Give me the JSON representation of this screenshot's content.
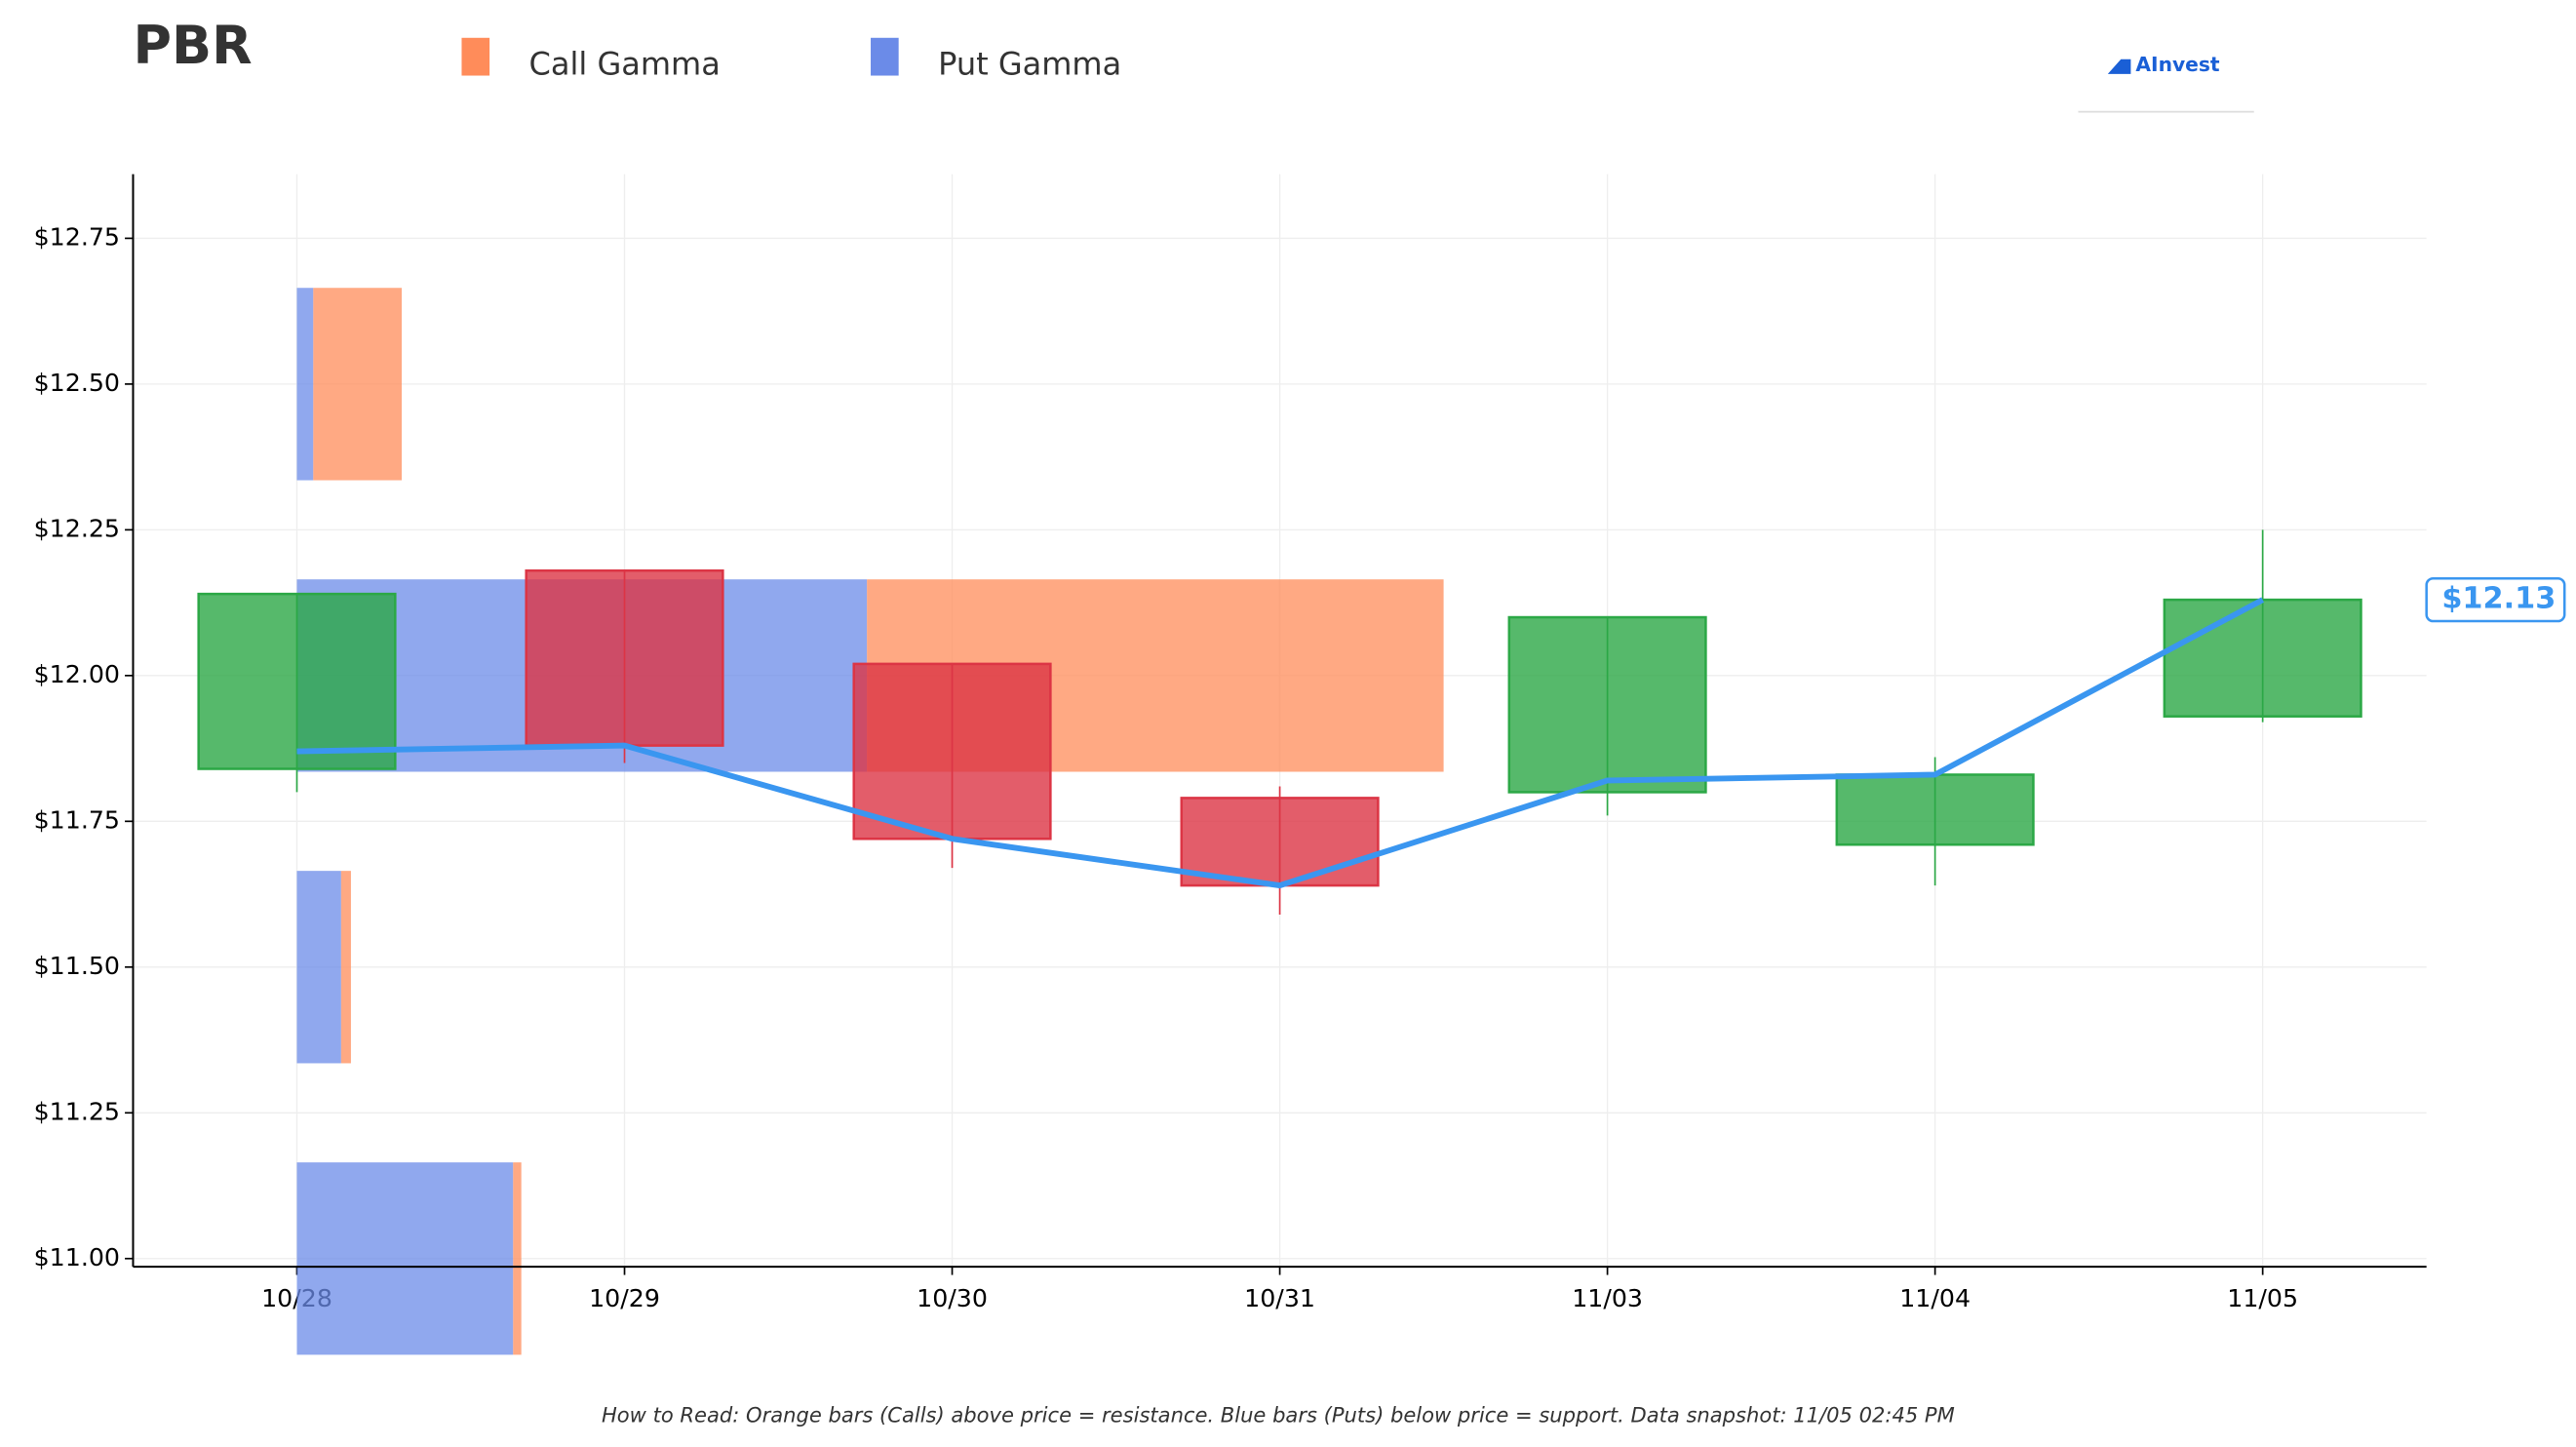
{
  "chart_data": {
    "type": "candlestick",
    "title": "PBR",
    "logo": "AInvest",
    "categories": [
      "10/28",
      "10/29",
      "10/30",
      "10/31",
      "11/03",
      "11/04",
      "11/05"
    ],
    "open": [
      11.84,
      12.18,
      12.02,
      11.79,
      11.8,
      11.71,
      11.93
    ],
    "high": [
      12.14,
      12.18,
      12.02,
      11.81,
      12.1,
      11.86,
      12.25
    ],
    "low": [
      11.8,
      11.85,
      11.67,
      11.59,
      11.76,
      11.64,
      11.92
    ],
    "close": [
      12.14,
      11.88,
      11.72,
      11.64,
      12.1,
      11.83,
      12.13
    ],
    "up_color": "#2ca846",
    "down_color": "#dc3545",
    "price_line": {
      "color": "#3a96f0",
      "values": [
        11.87,
        11.88,
        11.72,
        11.64,
        11.82,
        11.83,
        12.13
      ]
    },
    "last_price_label": "$12.13",
    "gamma": {
      "strikes": [
        12.5,
        12.0,
        11.5,
        11.0
      ],
      "series": [
        {
          "name": "Call Gamma",
          "color": "#ff8c5a",
          "values": [
            0.27,
            1.76,
            0.03,
            0.025
          ]
        },
        {
          "name": "Put Gamma",
          "color": "#6b8be8",
          "values": [
            0.05,
            1.74,
            0.135,
            0.66
          ]
        }
      ]
    },
    "xlim": [
      -0.5,
      6.5
    ],
    "ylim": [
      10.986,
      12.86
    ],
    "yticks": [
      {
        "value": 11.0,
        "label": "$11.00"
      },
      {
        "value": 11.25,
        "label": "$11.25"
      },
      {
        "value": 11.5,
        "label": "$11.50"
      },
      {
        "value": 11.75,
        "label": "$11.75"
      },
      {
        "value": 12.0,
        "label": "$12.00"
      },
      {
        "value": 12.25,
        "label": "$12.25"
      },
      {
        "value": 12.5,
        "label": "$12.50"
      },
      {
        "value": 12.75,
        "label": "$12.75"
      }
    ],
    "grid": true,
    "note": "How to Read: Orange bars (Calls) above price = resistance. Blue bars (Puts) below price = support. Data snapshot: 11/05 02:45 PM"
  }
}
